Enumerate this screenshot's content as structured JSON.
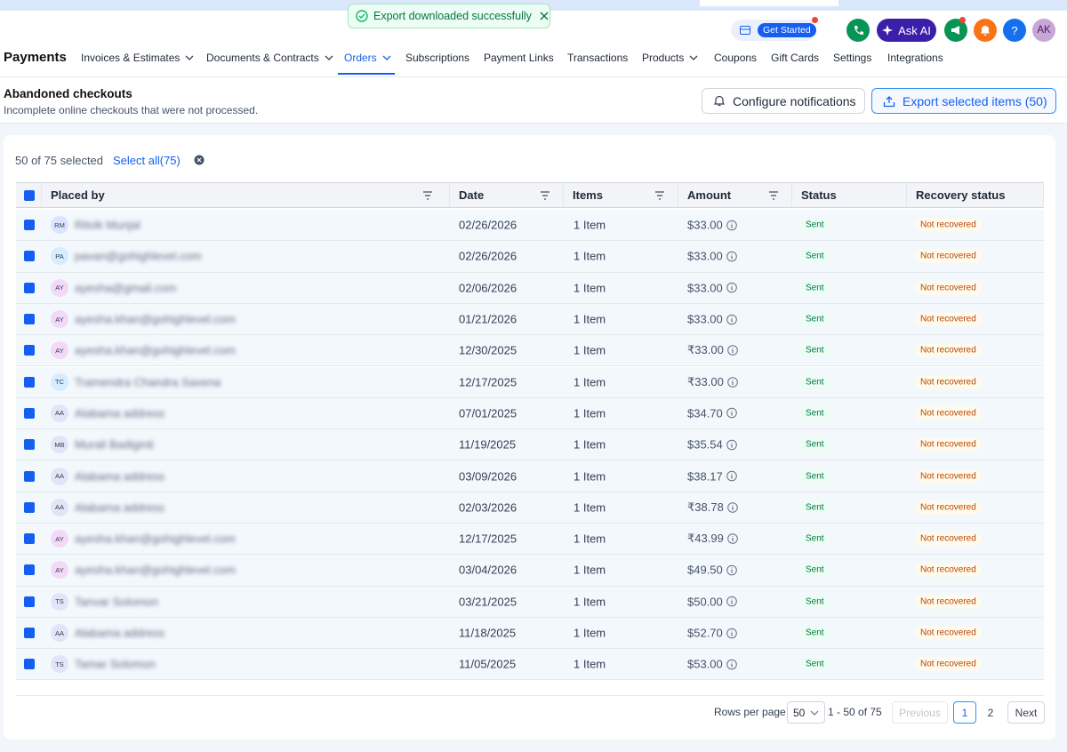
{
  "toast": "Export downloaded successfully",
  "topbar": {
    "get_started": "Get Started",
    "ask_ai": "Ask AI",
    "help": "?",
    "avatar": "AK"
  },
  "nav": {
    "title": "Payments",
    "tabs": [
      "Invoices & Estimates",
      "Documents & Contracts",
      "Orders",
      "Subscriptions",
      "Payment Links",
      "Transactions",
      "Products",
      "Coupons",
      "Gift Cards",
      "Settings",
      "Integrations"
    ],
    "active": 2,
    "dropdown_tabs": [
      0,
      1,
      2,
      6
    ]
  },
  "header": {
    "title": "Abandoned checkouts",
    "subtitle": "Incomplete online checkouts that were not processed.",
    "configure": "Configure notifications",
    "export": "Export selected items (50)"
  },
  "selection": {
    "count": "50 of 75 selected",
    "select_all": "Select all(75)"
  },
  "table": {
    "columns": [
      "Placed by",
      "Date",
      "Items",
      "Amount",
      "Status",
      "Recovery status"
    ],
    "rows": [
      [
        "RM",
        "Ritvik Munjal",
        "02/26/2026",
        "1 Item",
        "$33.00",
        "Sent",
        "Not recovered"
      ],
      [
        "PA",
        "pavan@gohighlevel.com",
        "02/26/2026",
        "1 Item",
        "$33.00",
        "Sent",
        "Not recovered"
      ],
      [
        "AY",
        "ayesha@gmail.com",
        "02/06/2026",
        "1 Item",
        "$33.00",
        "Sent",
        "Not recovered"
      ],
      [
        "AY",
        "ayesha.khan@gohighlevel.com",
        "01/21/2026",
        "1 Item",
        "$33.00",
        "Sent",
        "Not recovered"
      ],
      [
        "AY",
        "ayesha.khan@gohighlevel.com",
        "12/30/2025",
        "1 Item",
        "₹33.00",
        "Sent",
        "Not recovered"
      ],
      [
        "TC",
        "Tramendra Chandra Saxena",
        "12/17/2025",
        "1 Item",
        "₹33.00",
        "Sent",
        "Not recovered"
      ],
      [
        "AA",
        "Alabama address",
        "07/01/2025",
        "1 Item",
        "$34.70",
        "Sent",
        "Not recovered"
      ],
      [
        "MB",
        "Murali Badiginti",
        "11/19/2025",
        "1 Item",
        "$35.54",
        "Sent",
        "Not recovered"
      ],
      [
        "AA",
        "Alabama address",
        "03/09/2026",
        "1 Item",
        "$38.17",
        "Sent",
        "Not recovered"
      ],
      [
        "AA",
        "Alabama address",
        "02/03/2026",
        "1 Item",
        "₹38.78",
        "Sent",
        "Not recovered"
      ],
      [
        "AY",
        "ayesha.khan@gohighlevel.com",
        "12/17/2025",
        "1 Item",
        "₹43.99",
        "Sent",
        "Not recovered"
      ],
      [
        "AY",
        "ayesha.khan@gohighlevel.com",
        "03/04/2026",
        "1 Item",
        "$49.50",
        "Sent",
        "Not recovered"
      ],
      [
        "TS",
        "Tanvar Solomon",
        "03/21/2025",
        "1 Item",
        "$50.00",
        "Sent",
        "Not recovered"
      ],
      [
        "AA",
        "Alabama address",
        "11/18/2025",
        "1 Item",
        "$52.70",
        "Sent",
        "Not recovered"
      ],
      [
        "TS",
        "Tamar Solomon",
        "11/05/2025",
        "1 Item",
        "$53.00",
        "Sent",
        "Not recovered"
      ]
    ]
  },
  "pagination": {
    "rows_per_page": "Rows per page",
    "page_size": "50",
    "range": "1 - 50 of 75",
    "previous": "Previous",
    "pages": [
      "1",
      "2"
    ],
    "next": "Next"
  }
}
